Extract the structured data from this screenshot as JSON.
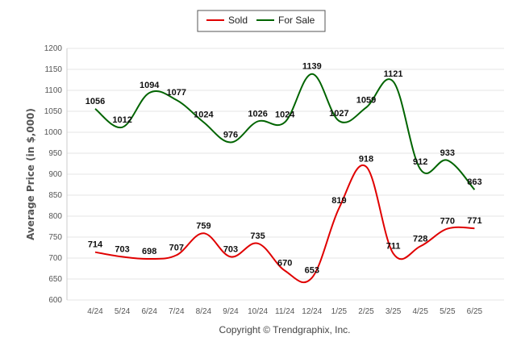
{
  "chart_data": {
    "type": "line",
    "categories": [
      "4/24",
      "5/24",
      "6/24",
      "7/24",
      "8/24",
      "9/24",
      "10/24",
      "11/24",
      "12/24",
      "1/25",
      "2/25",
      "3/25",
      "4/25",
      "5/25",
      "6/25"
    ],
    "series": [
      {
        "name": "Sold",
        "color": "#e00000",
        "values": [
          714,
          703,
          698,
          707,
          759,
          703,
          735,
          670,
          653,
          819,
          918,
          711,
          728,
          770,
          771
        ]
      },
      {
        "name": "For Sale",
        "color": "#006400",
        "values": [
          1056,
          1012,
          1094,
          1077,
          1024,
          976,
          1026,
          1024,
          1139,
          1027,
          1059,
          1121,
          912,
          933,
          863
        ]
      }
    ],
    "ylabel": "Average Price (in $,000)",
    "ylim": [
      600,
      1200
    ],
    "yticks": [
      600,
      650,
      700,
      750,
      800,
      850,
      900,
      950,
      1000,
      1050,
      1100,
      1150,
      1200
    ],
    "grid": true,
    "legend_position": "top-center",
    "footer": "Copyright © Trendgraphix, Inc."
  }
}
